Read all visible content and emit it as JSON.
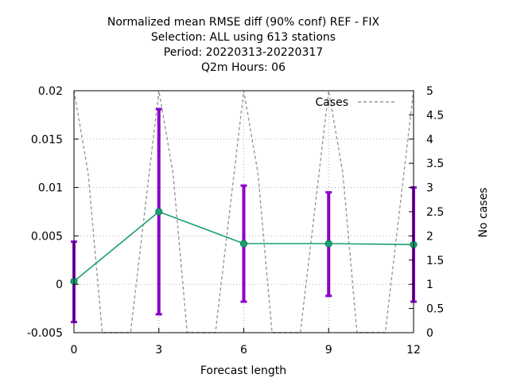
{
  "chart_data": {
    "type": "line",
    "title_lines": [
      "Normalized mean RMSE diff (90% conf) REF - FIX",
      "Selection: ALL using   613 stations",
      "Period: 20220313-20220317",
      "Q2m   Hours:  06"
    ],
    "xlabel": "Forecast length",
    "ylabel": "",
    "y2label": "No cases",
    "x_ticks": [
      0,
      3,
      6,
      9,
      12
    ],
    "y_ticks": [
      "-0.005",
      "0",
      "0.005",
      "0.01",
      "0.015",
      "0.02"
    ],
    "y2_ticks": [
      "0",
      "0.5",
      "1",
      "1.5",
      "2",
      "2.5",
      "3",
      "3.5",
      "4",
      "4.5",
      "5"
    ],
    "xlim": [
      0,
      12
    ],
    "ylim": [
      -0.005,
      0.02
    ],
    "y2lim": [
      0,
      5
    ],
    "grid": true,
    "legend_position": "top-right",
    "series": [
      {
        "role": "mean",
        "color": "#1a9e77",
        "x": [
          0,
          3,
          6,
          9,
          12
        ],
        "y": [
          0.0003,
          0.0075,
          0.0042,
          0.0042,
          0.0041
        ]
      },
      {
        "role": "confidence",
        "color": "#8b00c9",
        "x": [
          0,
          3,
          6,
          9,
          12
        ],
        "low": [
          -0.0039,
          -0.0031,
          -0.0018,
          -0.0012,
          -0.0018
        ],
        "high": [
          0.0044,
          0.0181,
          0.0102,
          0.0095,
          0.01
        ]
      },
      {
        "name": "Cases",
        "axis": "y2",
        "style": "dashed",
        "color": "#999999",
        "x": [
          0,
          0.5,
          1,
          2,
          3,
          3.5,
          4,
          5,
          6,
          6.5,
          7,
          8,
          9,
          9.5,
          10,
          11,
          12
        ],
        "y": [
          5,
          3.3,
          0,
          0,
          5,
          3.3,
          0,
          0,
          5,
          3.3,
          0,
          0,
          5,
          3.3,
          0,
          0,
          5
        ]
      }
    ]
  }
}
